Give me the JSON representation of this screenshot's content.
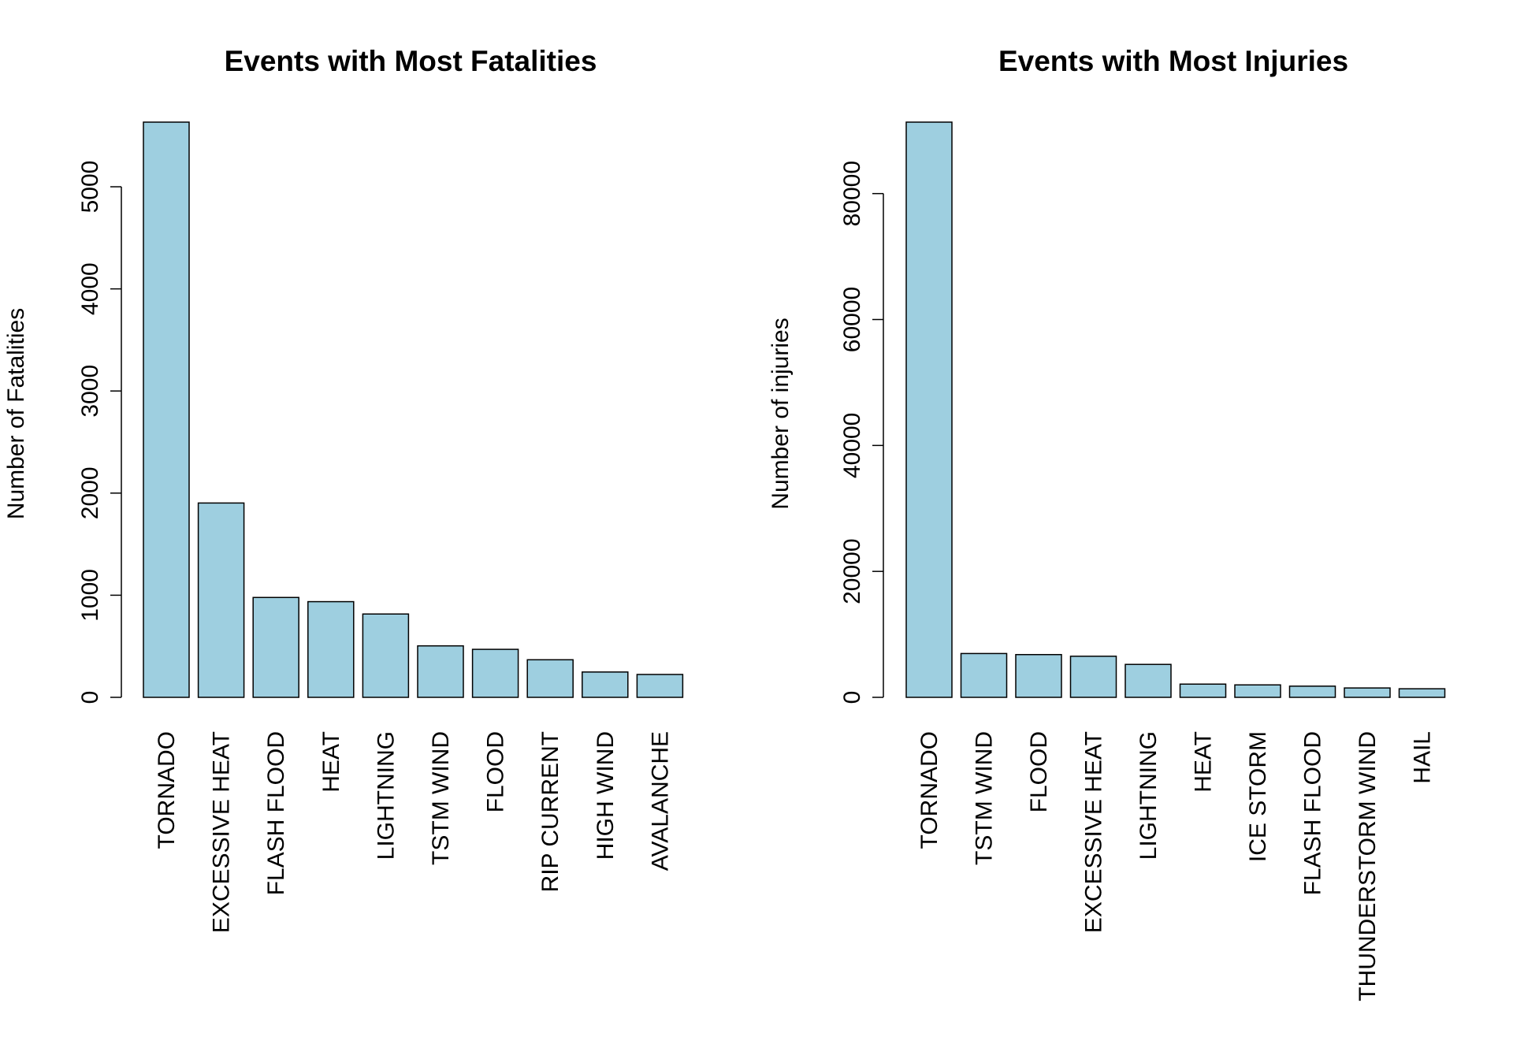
{
  "bar_color": "#9ecfe0",
  "chart_data": [
    {
      "type": "bar",
      "title": "Events with Most Fatalities",
      "ylabel": "Number of Fatalities",
      "xlabel": "",
      "ylim": [
        0,
        5633
      ],
      "yticks": [
        0,
        1000,
        2000,
        3000,
        4000,
        5000
      ],
      "categories": [
        "TORNADO",
        "EXCESSIVE HEAT",
        "FLASH FLOOD",
        "HEAT",
        "LIGHTNING",
        "TSTM WIND",
        "FLOOD",
        "RIP CURRENT",
        "HIGH WIND",
        "AVALANCHE"
      ],
      "values": [
        5633,
        1903,
        978,
        937,
        816,
        504,
        470,
        368,
        248,
        224
      ],
      "grid": false,
      "legend": "none"
    },
    {
      "type": "bar",
      "title": "Events with Most Injuries",
      "ylabel": "Number of injuries",
      "xlabel": "",
      "ylim": [
        0,
        91346
      ],
      "yticks": [
        0,
        20000,
        40000,
        60000,
        80000
      ],
      "categories": [
        "TORNADO",
        "TSTM WIND",
        "FLOOD",
        "EXCESSIVE HEAT",
        "LIGHTNING",
        "HEAT",
        "ICE STORM",
        "FLASH FLOOD",
        "THUNDERSTORM WIND",
        "HAIL"
      ],
      "values": [
        91346,
        6957,
        6789,
        6525,
        5230,
        2100,
        1975,
        1777,
        1488,
        1361
      ],
      "grid": false,
      "legend": "none"
    }
  ]
}
